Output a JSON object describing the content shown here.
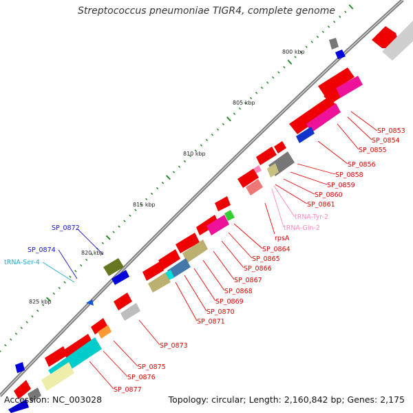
{
  "title": "Streptococcus pneumoniae TIGR4, complete genome",
  "accession": "Accession: NC_003028",
  "summary": "Topology: circular; Length: 2,160,842 bp; Genes: 2,175",
  "positions": [
    "800 kbp",
    "805 kbp",
    "810 kbp",
    "815 kbp",
    "820 kbp",
    "825 kbp"
  ],
  "genes_red": [
    "SP_0853",
    "SP_0854",
    "SP_0855",
    "SP_0856",
    "SP_0858",
    "SP_0859",
    "SP_0860",
    "SP_0861",
    "rpsA",
    "SP_0864",
    "SP_0865",
    "SP_0866",
    "SP_0867",
    "SP_0868",
    "SP_0869",
    "SP_0870",
    "SP_0871",
    "SP_0873",
    "SP_0875",
    "SP_0876",
    "SP_0877"
  ],
  "trnas": [
    "tRNA-Tyr-2",
    "tRNA-Gln-2"
  ],
  "genes_blue": [
    "SP_0872",
    "SP_0874"
  ],
  "trna_cyan": "tRNA-Ser-4",
  "colors": {
    "cds": "#ff0000",
    "backbone": "#888888",
    "tick": "#2a8a2a",
    "label_red": "#dd0000",
    "label_blue": "#1010cc",
    "label_pink": "#ff88bb",
    "label_cyan": "#22aacc"
  }
}
